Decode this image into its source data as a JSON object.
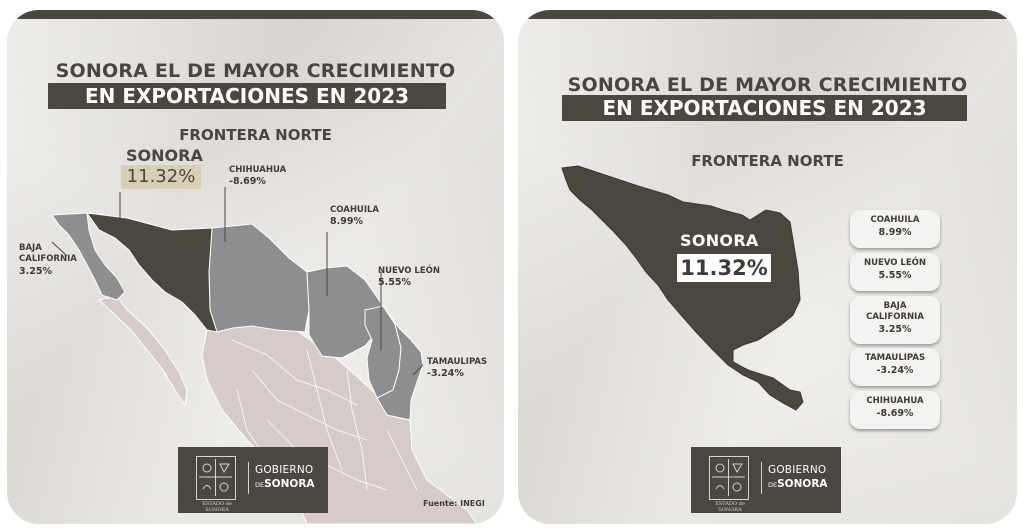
{
  "left_panel": {
    "title_line1": "SONORA EL DE MAYOR CRECIMIENTO",
    "title_line2": "EN EXPORTACIONES EN 2023",
    "subtitle": "FRONTERA NORTE",
    "states": [
      {
        "name": "SONORA",
        "value": "11.32%"
      },
      {
        "name": "CHIHUAHUA",
        "value": "-8.69%"
      },
      {
        "name": "COAHUILA",
        "value": "8.99%"
      },
      {
        "name": "BAJA",
        "name2": "CALIFORNIA",
        "value": "3.25%"
      },
      {
        "name": "NUEVO LEÓN",
        "value": "5.55%"
      },
      {
        "name": "TAMAULIPAS",
        "value": "-3.24%"
      }
    ],
    "source": "Fuente: INEGI",
    "logo": {
      "line1": "GOBIERNO",
      "line2_prefix": "DE",
      "line2": "SONORA",
      "seal_caption": "ESTADO de SONORA"
    }
  },
  "right_panel": {
    "title_line1": "SONORA EL DE MAYOR CRECIMIENTO",
    "title_line2": "EN EXPORTACIONES EN 2023",
    "subtitle": "FRONTERA NORTE",
    "sonora": {
      "name": "SONORA",
      "value": "11.32%"
    },
    "cards": [
      {
        "name": "COAHUILA",
        "value": "8.99%"
      },
      {
        "name": "NUEVO LEÓN",
        "value": "5.55%"
      },
      {
        "name": "BAJA",
        "name2": "CALIFORNIA",
        "value": "3.25%"
      },
      {
        "name": "TAMAULIPAS",
        "value": "-3.24%"
      },
      {
        "name": "CHIHUAHUA",
        "value": "-8.69%"
      }
    ],
    "logo": {
      "line1": "GOBIERNO",
      "line2_prefix": "DE",
      "line2": "SONORA",
      "seal_caption": "ESTADO de SONORA"
    }
  },
  "colors": {
    "dark": "#4b473f",
    "border_states": "#8e8d8f",
    "rest_of_mexico": "#d6cbc9",
    "paper": "#e9e6e1",
    "highlight": "#d9cfb7"
  }
}
